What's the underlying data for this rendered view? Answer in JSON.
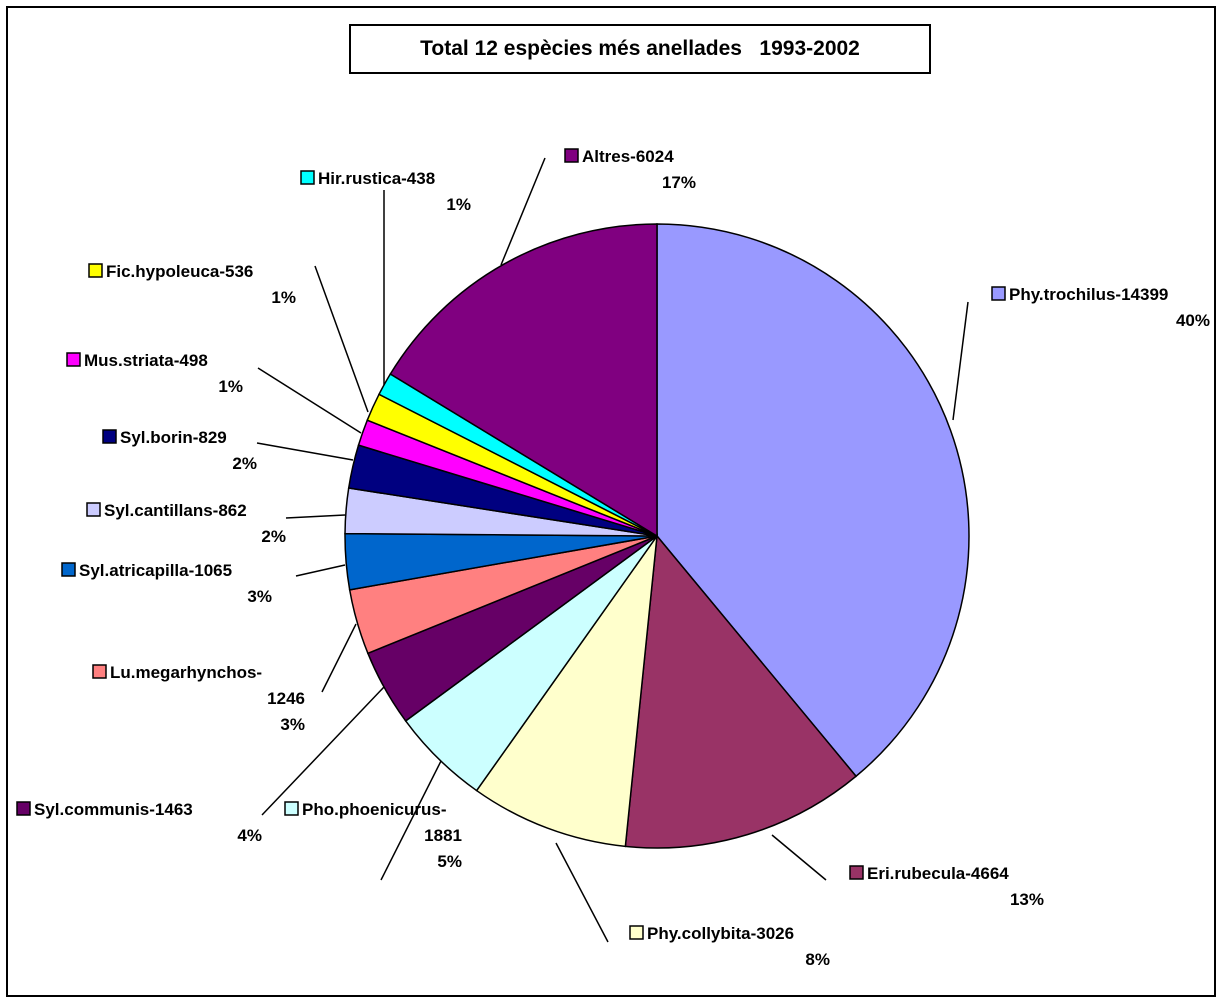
{
  "chart_data": {
    "type": "pie",
    "title": "Total 12 espècies més anellades   1993-2002",
    "slices": [
      {
        "label": "Phy.trochilus-14399",
        "label_lines": [
          "Phy.trochilus-14399"
        ],
        "pct_text": "40%",
        "value": 14399,
        "color": "#9999ff"
      },
      {
        "label": "Eri.rubecula-4664",
        "label_lines": [
          "Eri.rubecula-4664"
        ],
        "pct_text": "13%",
        "value": 4664,
        "color": "#993366"
      },
      {
        "label": "Phy.collybita-3026",
        "label_lines": [
          "Phy.collybita-3026"
        ],
        "pct_text": "8%",
        "value": 3026,
        "color": "#ffffcc"
      },
      {
        "label": "Pho.phoenicurus-1881",
        "label_lines": [
          "Pho.phoenicurus-",
          "1881"
        ],
        "pct_text": "5%",
        "value": 1881,
        "color": "#ccffff"
      },
      {
        "label": "Syl.communis-1463",
        "label_lines": [
          "Syl.communis-1463"
        ],
        "pct_text": "4%",
        "value": 1463,
        "color": "#660066"
      },
      {
        "label": "Lu.megarhynchos-1246",
        "label_lines": [
          "Lu.megarhynchos-",
          "1246"
        ],
        "pct_text": "3%",
        "value": 1246,
        "color": "#ff8080"
      },
      {
        "label": "Syl.atricapilla-1065",
        "label_lines": [
          "Syl.atricapilla-1065"
        ],
        "pct_text": "3%",
        "value": 1065,
        "color": "#0066cc"
      },
      {
        "label": "Syl.cantillans-862",
        "label_lines": [
          "Syl.cantillans-862"
        ],
        "pct_text": "2%",
        "value": 862,
        "color": "#ccccff"
      },
      {
        "label": "Syl.borin-829",
        "label_lines": [
          "Syl.borin-829"
        ],
        "pct_text": "2%",
        "value": 829,
        "color": "#000080"
      },
      {
        "label": "Mus.striata-498",
        "label_lines": [
          "Mus.striata-498"
        ],
        "pct_text": "1%",
        "value": 498,
        "color": "#ff00ff"
      },
      {
        "label": "Fic.hypoleuca-536",
        "label_lines": [
          "Fic.hypoleuca-536"
        ],
        "pct_text": "1%",
        "value": 536,
        "color": "#ffff00"
      },
      {
        "label": "Hir.rustica-438",
        "label_lines": [
          "Hir.rustica-438"
        ],
        "pct_text": "1%",
        "value": 438,
        "color": "#00ffff"
      },
      {
        "label": "Altres-6024",
        "label_lines": [
          "Altres-6024"
        ],
        "pct_text": "17%",
        "value": 6024,
        "color": "#800080"
      }
    ]
  }
}
